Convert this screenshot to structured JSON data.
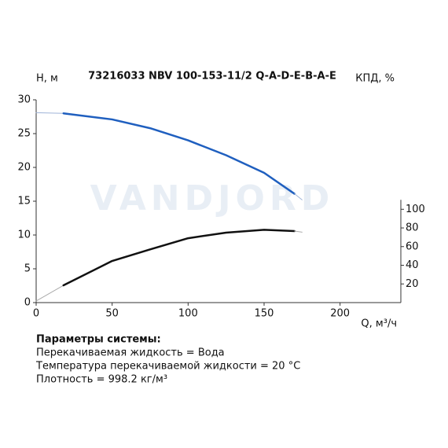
{
  "chart_data": {
    "type": "line",
    "title": "73216033 NBV 100-153-11/2 Q-A-D-E-B-A-E",
    "watermark": "VANDJORD",
    "y_label": "H, м",
    "y2_label": "КПД, %",
    "x_label": "Q, м³/ч",
    "xlim": [
      0,
      240
    ],
    "xticks": [
      0,
      50,
      100,
      150,
      200
    ],
    "ylim": [
      0,
      30
    ],
    "yticks": [
      0,
      5,
      10,
      15,
      20,
      25,
      30
    ],
    "y2lim": [
      0,
      217.3
    ],
    "y2ticks": [
      20,
      40,
      60,
      80,
      100
    ],
    "series": [
      {
        "color": "#9fb4d8",
        "width": 1,
        "x": [
          0,
          18
        ],
        "values": [
          28.1,
          28
        ]
      },
      {
        "color": "#1f5fbf",
        "width": 2.5,
        "x": [
          18,
          50,
          75,
          100,
          125,
          150,
          170
        ],
        "values": [
          28,
          27.1,
          25.8,
          24,
          21.8,
          19.2,
          16.1
        ]
      },
      {
        "color": "#9fb4d8",
        "width": 1,
        "x": [
          170,
          175
        ],
        "values": [
          16.1,
          15.2
        ]
      },
      {
        "color": "#aaaaaa",
        "width": 1,
        "axis": "y2",
        "x": [
          0,
          18
        ],
        "values": [
          1.7,
          18.5
        ]
      },
      {
        "color": "#111111",
        "width": 2.5,
        "axis": "y2",
        "x": [
          18,
          50,
          75,
          100,
          125,
          150,
          170
        ],
        "values": [
          18.5,
          44.6,
          57,
          69,
          75,
          78,
          76.6
        ]
      },
      {
        "color": "#aaaaaa",
        "width": 1,
        "axis": "y2",
        "x": [
          170,
          175
        ],
        "values": [
          76.6,
          75.5
        ]
      }
    ]
  },
  "parameters": {
    "heading": "Параметры системы:",
    "lines": [
      "Перекачиваемая жидкость = Вода",
      "Температура перекачиваемой жидкости = 20 °C",
      "Плотность = 998.2 кг/м³"
    ]
  }
}
